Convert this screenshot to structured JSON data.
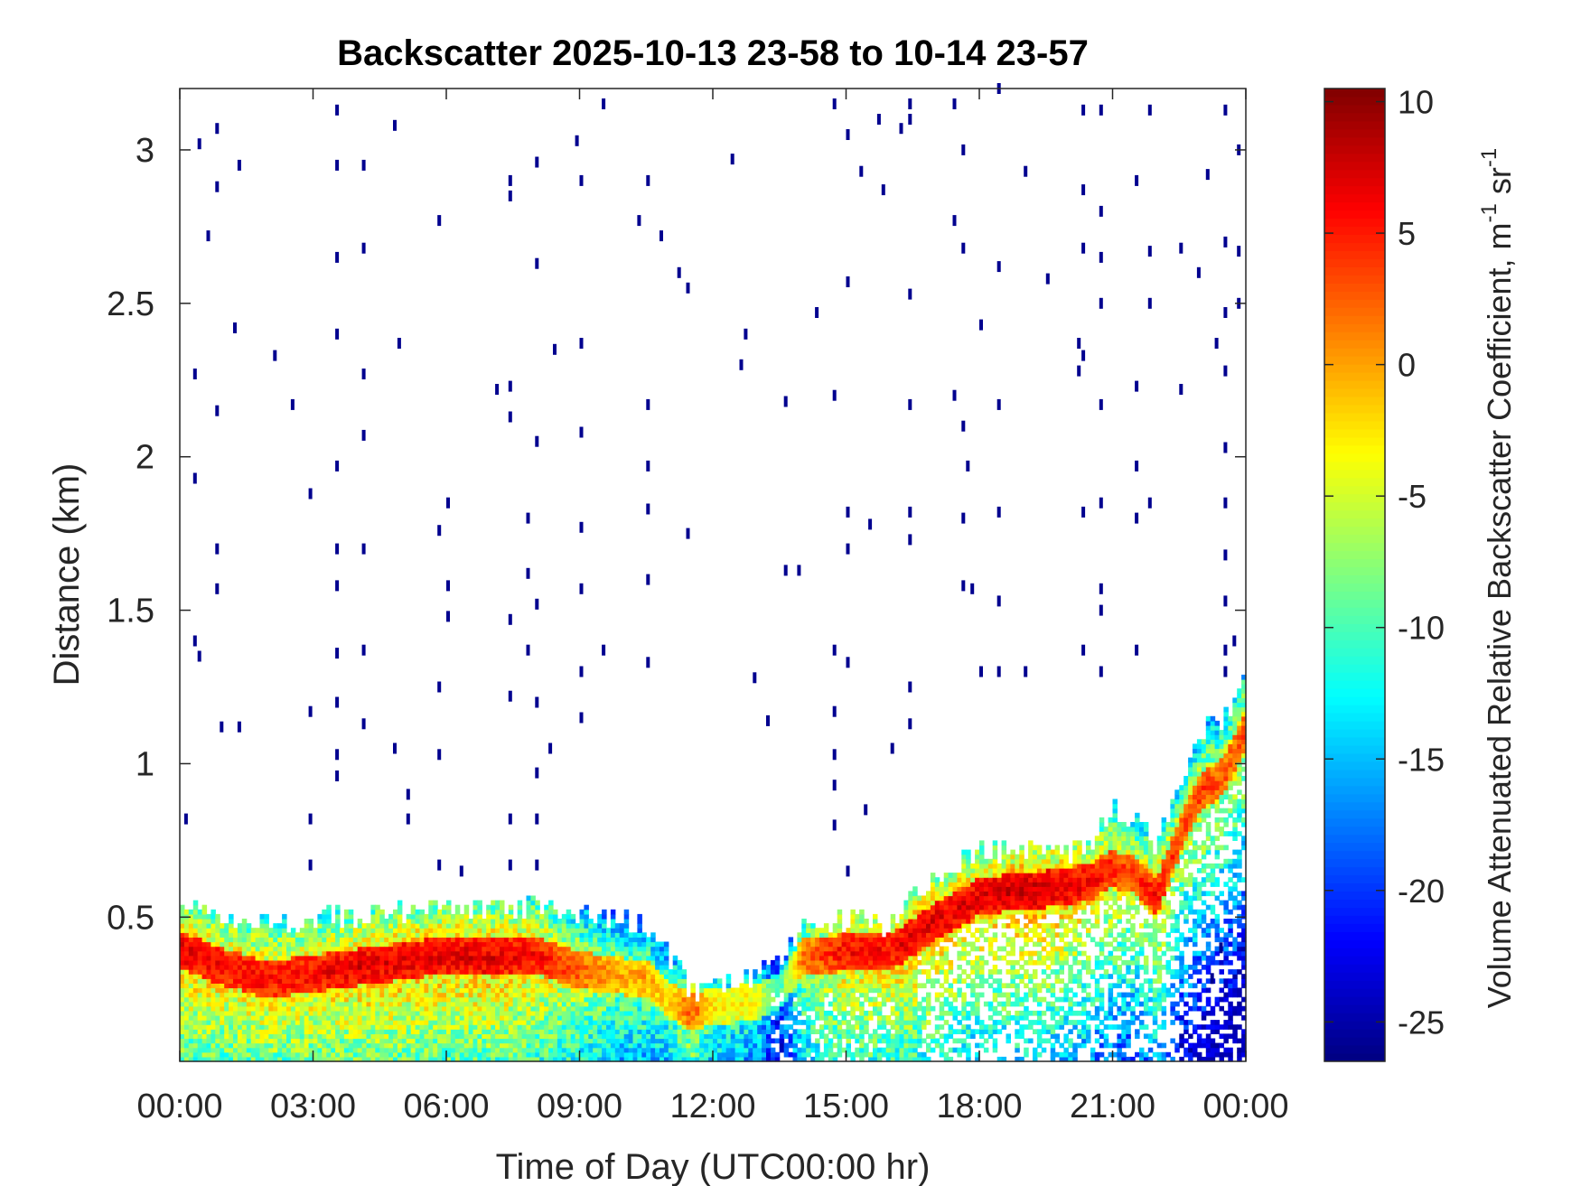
{
  "chart_data": {
    "type": "heatmap",
    "title": "Backscatter 2025-10-13 23-58 to 10-14 23-57",
    "xlabel": "Time of Day (UTC00:00 hr)",
    "ylabel": "Distance (km)",
    "xlim": [
      0,
      24
    ],
    "ylim": [
      0.03,
      3.2
    ],
    "x_ticks": [
      {
        "value": 0,
        "label": "00:00"
      },
      {
        "value": 3,
        "label": "03:00"
      },
      {
        "value": 6,
        "label": "06:00"
      },
      {
        "value": 9,
        "label": "09:00"
      },
      {
        "value": 12,
        "label": "12:00"
      },
      {
        "value": 15,
        "label": "15:00"
      },
      {
        "value": 18,
        "label": "18:00"
      },
      {
        "value": 21,
        "label": "21:00"
      },
      {
        "value": 24,
        "label": "00:00"
      }
    ],
    "y_ticks": [
      {
        "value": 0.5,
        "label": "0.5"
      },
      {
        "value": 1,
        "label": "1"
      },
      {
        "value": 1.5,
        "label": "1.5"
      },
      {
        "value": 2,
        "label": "2"
      },
      {
        "value": 2.5,
        "label": "2.5"
      },
      {
        "value": 3,
        "label": "3"
      }
    ],
    "colorbar": {
      "label_main": "Volume Attenuated Relative Backscatter Coefficient, m",
      "label_sup1": "-1",
      "label_mid": " sr",
      "label_sup2": "-1",
      "range": [
        -26.5,
        10.5
      ],
      "colormap": "jet",
      "ticks": [
        {
          "value": 10,
          "label": "10"
        },
        {
          "value": 5,
          "label": "5"
        },
        {
          "value": 0,
          "label": "0"
        },
        {
          "value": -5,
          "label": "-5"
        },
        {
          "value": -10,
          "label": "-10"
        },
        {
          "value": -15,
          "label": "-15"
        },
        {
          "value": -20,
          "label": "-20"
        },
        {
          "value": -25,
          "label": "-25"
        }
      ]
    },
    "time_resolution_hours": 0.1,
    "layer_profile": {
      "description_keys": [
        "time_hr",
        "layer_top_km",
        "peak_km",
        "peak_value"
      ],
      "points": [
        [
          0.0,
          0.53,
          0.39,
          7
        ],
        [
          1.0,
          0.48,
          0.33,
          6
        ],
        [
          2.0,
          0.47,
          0.29,
          6
        ],
        [
          3.0,
          0.49,
          0.31,
          6
        ],
        [
          4.0,
          0.5,
          0.33,
          7
        ],
        [
          5.0,
          0.51,
          0.35,
          7
        ],
        [
          6.0,
          0.52,
          0.37,
          7
        ],
        [
          7.0,
          0.51,
          0.36,
          7
        ],
        [
          8.0,
          0.52,
          0.37,
          6
        ],
        [
          9.0,
          0.5,
          0.32,
          3
        ],
        [
          10.0,
          0.48,
          0.3,
          0
        ],
        [
          10.5,
          0.46,
          0.3,
          0
        ],
        [
          11.0,
          0.38,
          0.22,
          -2
        ],
        [
          11.5,
          0.25,
          0.19,
          3
        ],
        [
          12.0,
          0.27,
          0.2,
          -2
        ],
        [
          13.0,
          0.3,
          0.22,
          -3
        ],
        [
          13.5,
          0.34,
          0.25,
          -10
        ],
        [
          14.0,
          0.46,
          0.36,
          2
        ],
        [
          15.0,
          0.48,
          0.38,
          6
        ],
        [
          16.0,
          0.47,
          0.38,
          6
        ],
        [
          16.5,
          0.55,
          0.43,
          7
        ],
        [
          17.0,
          0.62,
          0.48,
          7
        ],
        [
          18.0,
          0.7,
          0.56,
          7
        ],
        [
          19.0,
          0.72,
          0.58,
          8
        ],
        [
          20.0,
          0.7,
          0.59,
          7
        ],
        [
          20.5,
          0.72,
          0.61,
          6
        ],
        [
          21.0,
          0.85,
          0.65,
          5
        ],
        [
          21.5,
          0.8,
          0.63,
          4
        ],
        [
          22.0,
          0.72,
          0.56,
          6
        ],
        [
          22.5,
          0.95,
          0.75,
          3
        ],
        [
          23.0,
          1.1,
          0.9,
          4
        ],
        [
          23.5,
          1.15,
          0.95,
          3
        ],
        [
          24.0,
          1.25,
          1.1,
          4
        ]
      ]
    },
    "noise_points_km": [
      [
        0.1,
        0.82
      ],
      [
        0.3,
        1.4
      ],
      [
        0.4,
        1.35
      ],
      [
        0.4,
        3.02
      ],
      [
        0.8,
        3.07
      ],
      [
        0.8,
        2.88
      ],
      [
        0.6,
        2.72
      ],
      [
        1.2,
        2.42
      ],
      [
        0.9,
        1.12
      ],
      [
        1.3,
        1.12
      ],
      [
        0.8,
        1.57
      ],
      [
        0.8,
        1.7
      ],
      [
        0.3,
        1.93
      ],
      [
        0.3,
        2.27
      ],
      [
        0.8,
        2.15
      ],
      [
        1.3,
        2.95
      ],
      [
        2.1,
        2.33
      ],
      [
        2.5,
        2.17
      ],
      [
        2.9,
        1.88
      ],
      [
        2.9,
        1.17
      ],
      [
        2.9,
        0.82
      ],
      [
        2.9,
        0.67
      ],
      [
        3.5,
        3.13
      ],
      [
        3.5,
        2.95
      ],
      [
        3.5,
        2.65
      ],
      [
        3.5,
        2.4
      ],
      [
        3.5,
        1.97
      ],
      [
        3.5,
        1.7
      ],
      [
        3.5,
        1.58
      ],
      [
        3.5,
        1.36
      ],
      [
        3.5,
        1.2
      ],
      [
        3.5,
        1.03
      ],
      [
        3.5,
        0.96
      ],
      [
        4.1,
        2.95
      ],
      [
        4.1,
        2.68
      ],
      [
        4.1,
        2.27
      ],
      [
        4.1,
        2.07
      ],
      [
        4.1,
        1.7
      ],
      [
        4.1,
        1.37
      ],
      [
        4.1,
        1.13
      ],
      [
        4.8,
        3.08
      ],
      [
        4.9,
        2.37
      ],
      [
        4.8,
        1.05
      ],
      [
        5.1,
        0.9
      ],
      [
        5.1,
        0.82
      ],
      [
        5.8,
        2.77
      ],
      [
        5.8,
        1.76
      ],
      [
        5.8,
        1.25
      ],
      [
        5.8,
        1.03
      ],
      [
        5.8,
        0.67
      ],
      [
        6.0,
        1.85
      ],
      [
        6.0,
        1.58
      ],
      [
        6.0,
        1.48
      ],
      [
        6.3,
        0.65
      ],
      [
        7.1,
        2.22
      ],
      [
        7.4,
        2.9
      ],
      [
        7.4,
        2.85
      ],
      [
        7.4,
        2.23
      ],
      [
        7.4,
        2.13
      ],
      [
        7.4,
        1.47
      ],
      [
        7.4,
        1.22
      ],
      [
        7.4,
        0.82
      ],
      [
        7.4,
        0.67
      ],
      [
        7.8,
        1.8
      ],
      [
        7.8,
        1.62
      ],
      [
        7.8,
        1.37
      ],
      [
        8.0,
        2.96
      ],
      [
        8.0,
        2.63
      ],
      [
        8.0,
        2.05
      ],
      [
        8.0,
        1.52
      ],
      [
        8.0,
        1.2
      ],
      [
        8.0,
        0.97
      ],
      [
        8.0,
        0.82
      ],
      [
        8.0,
        0.67
      ],
      [
        8.4,
        2.35
      ],
      [
        8.3,
        1.05
      ],
      [
        8.9,
        3.03
      ],
      [
        9.0,
        2.9
      ],
      [
        9.0,
        2.37
      ],
      [
        9.0,
        2.08
      ],
      [
        9.0,
        1.77
      ],
      [
        9.0,
        1.57
      ],
      [
        9.0,
        1.3
      ],
      [
        9.0,
        1.15
      ],
      [
        9.5,
        3.15
      ],
      [
        9.5,
        1.37
      ],
      [
        10.3,
        2.77
      ],
      [
        10.5,
        2.9
      ],
      [
        10.5,
        2.17
      ],
      [
        10.5,
        1.97
      ],
      [
        10.5,
        1.83
      ],
      [
        10.5,
        1.6
      ],
      [
        10.5,
        1.33
      ],
      [
        10.8,
        2.72
      ],
      [
        11.2,
        2.6
      ],
      [
        11.4,
        2.55
      ],
      [
        11.4,
        1.75
      ],
      [
        12.4,
        2.97
      ],
      [
        12.6,
        2.3
      ],
      [
        12.7,
        2.4
      ],
      [
        12.9,
        1.28
      ],
      [
        13.2,
        1.14
      ],
      [
        13.6,
        2.18
      ],
      [
        13.6,
        1.63
      ],
      [
        13.9,
        1.63
      ],
      [
        14.3,
        2.47
      ],
      [
        14.7,
        3.15
      ],
      [
        14.7,
        2.2
      ],
      [
        14.7,
        1.37
      ],
      [
        14.7,
        1.17
      ],
      [
        14.7,
        1.03
      ],
      [
        14.7,
        0.93
      ],
      [
        14.7,
        0.8
      ],
      [
        15.0,
        3.05
      ],
      [
        15.0,
        2.57
      ],
      [
        15.0,
        1.82
      ],
      [
        15.0,
        1.7
      ],
      [
        15.0,
        1.33
      ],
      [
        15.0,
        0.65
      ],
      [
        15.3,
        2.93
      ],
      [
        15.5,
        1.78
      ],
      [
        15.4,
        0.85
      ],
      [
        15.7,
        3.1
      ],
      [
        15.8,
        2.87
      ],
      [
        16.0,
        1.05
      ],
      [
        16.2,
        3.07
      ],
      [
        16.4,
        3.15
      ],
      [
        16.4,
        3.1
      ],
      [
        16.4,
        2.53
      ],
      [
        16.4,
        2.17
      ],
      [
        16.4,
        1.82
      ],
      [
        16.4,
        1.73
      ],
      [
        16.4,
        1.25
      ],
      [
        16.4,
        1.13
      ],
      [
        17.4,
        3.15
      ],
      [
        17.4,
        2.77
      ],
      [
        17.4,
        2.2
      ],
      [
        17.6,
        3.0
      ],
      [
        17.6,
        2.68
      ],
      [
        17.6,
        2.1
      ],
      [
        17.6,
        1.8
      ],
      [
        17.6,
        1.58
      ],
      [
        17.7,
        1.97
      ],
      [
        17.8,
        1.57
      ],
      [
        18.0,
        2.43
      ],
      [
        18.4,
        3.2
      ],
      [
        18.4,
        2.62
      ],
      [
        18.4,
        2.17
      ],
      [
        18.4,
        1.82
      ],
      [
        18.4,
        1.3
      ],
      [
        18.4,
        1.53
      ],
      [
        18.0,
        1.3
      ],
      [
        19.0,
        2.93
      ],
      [
        19.0,
        1.3
      ],
      [
        19.5,
        2.58
      ],
      [
        20.2,
        2.28
      ],
      [
        20.2,
        2.37
      ],
      [
        20.3,
        3.13
      ],
      [
        20.3,
        2.87
      ],
      [
        20.3,
        2.68
      ],
      [
        20.3,
        2.33
      ],
      [
        20.3,
        1.82
      ],
      [
        20.3,
        1.37
      ],
      [
        20.7,
        3.13
      ],
      [
        20.7,
        2.8
      ],
      [
        20.7,
        2.65
      ],
      [
        20.7,
        2.5
      ],
      [
        20.7,
        2.17
      ],
      [
        20.7,
        1.85
      ],
      [
        20.7,
        1.57
      ],
      [
        20.7,
        1.5
      ],
      [
        20.7,
        1.3
      ],
      [
        21.5,
        2.9
      ],
      [
        21.5,
        2.23
      ],
      [
        21.5,
        1.97
      ],
      [
        21.5,
        1.8
      ],
      [
        21.5,
        1.37
      ],
      [
        21.8,
        3.13
      ],
      [
        21.8,
        2.67
      ],
      [
        21.8,
        2.5
      ],
      [
        21.8,
        1.85
      ],
      [
        22.5,
        2.68
      ],
      [
        22.5,
        2.22
      ],
      [
        22.9,
        2.6
      ],
      [
        23.1,
        2.92
      ],
      [
        23.5,
        3.13
      ],
      [
        23.5,
        2.7
      ],
      [
        23.5,
        2.47
      ],
      [
        23.5,
        2.28
      ],
      [
        23.5,
        2.03
      ],
      [
        23.5,
        1.85
      ],
      [
        23.5,
        1.68
      ],
      [
        23.5,
        1.53
      ],
      [
        23.5,
        1.37
      ],
      [
        23.5,
        1.3
      ],
      [
        23.8,
        3.0
      ],
      [
        23.8,
        2.67
      ],
      [
        23.8,
        2.5
      ],
      [
        23.3,
        2.37
      ],
      [
        23.7,
        1.4
      ],
      [
        23.2,
        0.3
      ],
      [
        23.4,
        0.4
      ]
    ]
  }
}
